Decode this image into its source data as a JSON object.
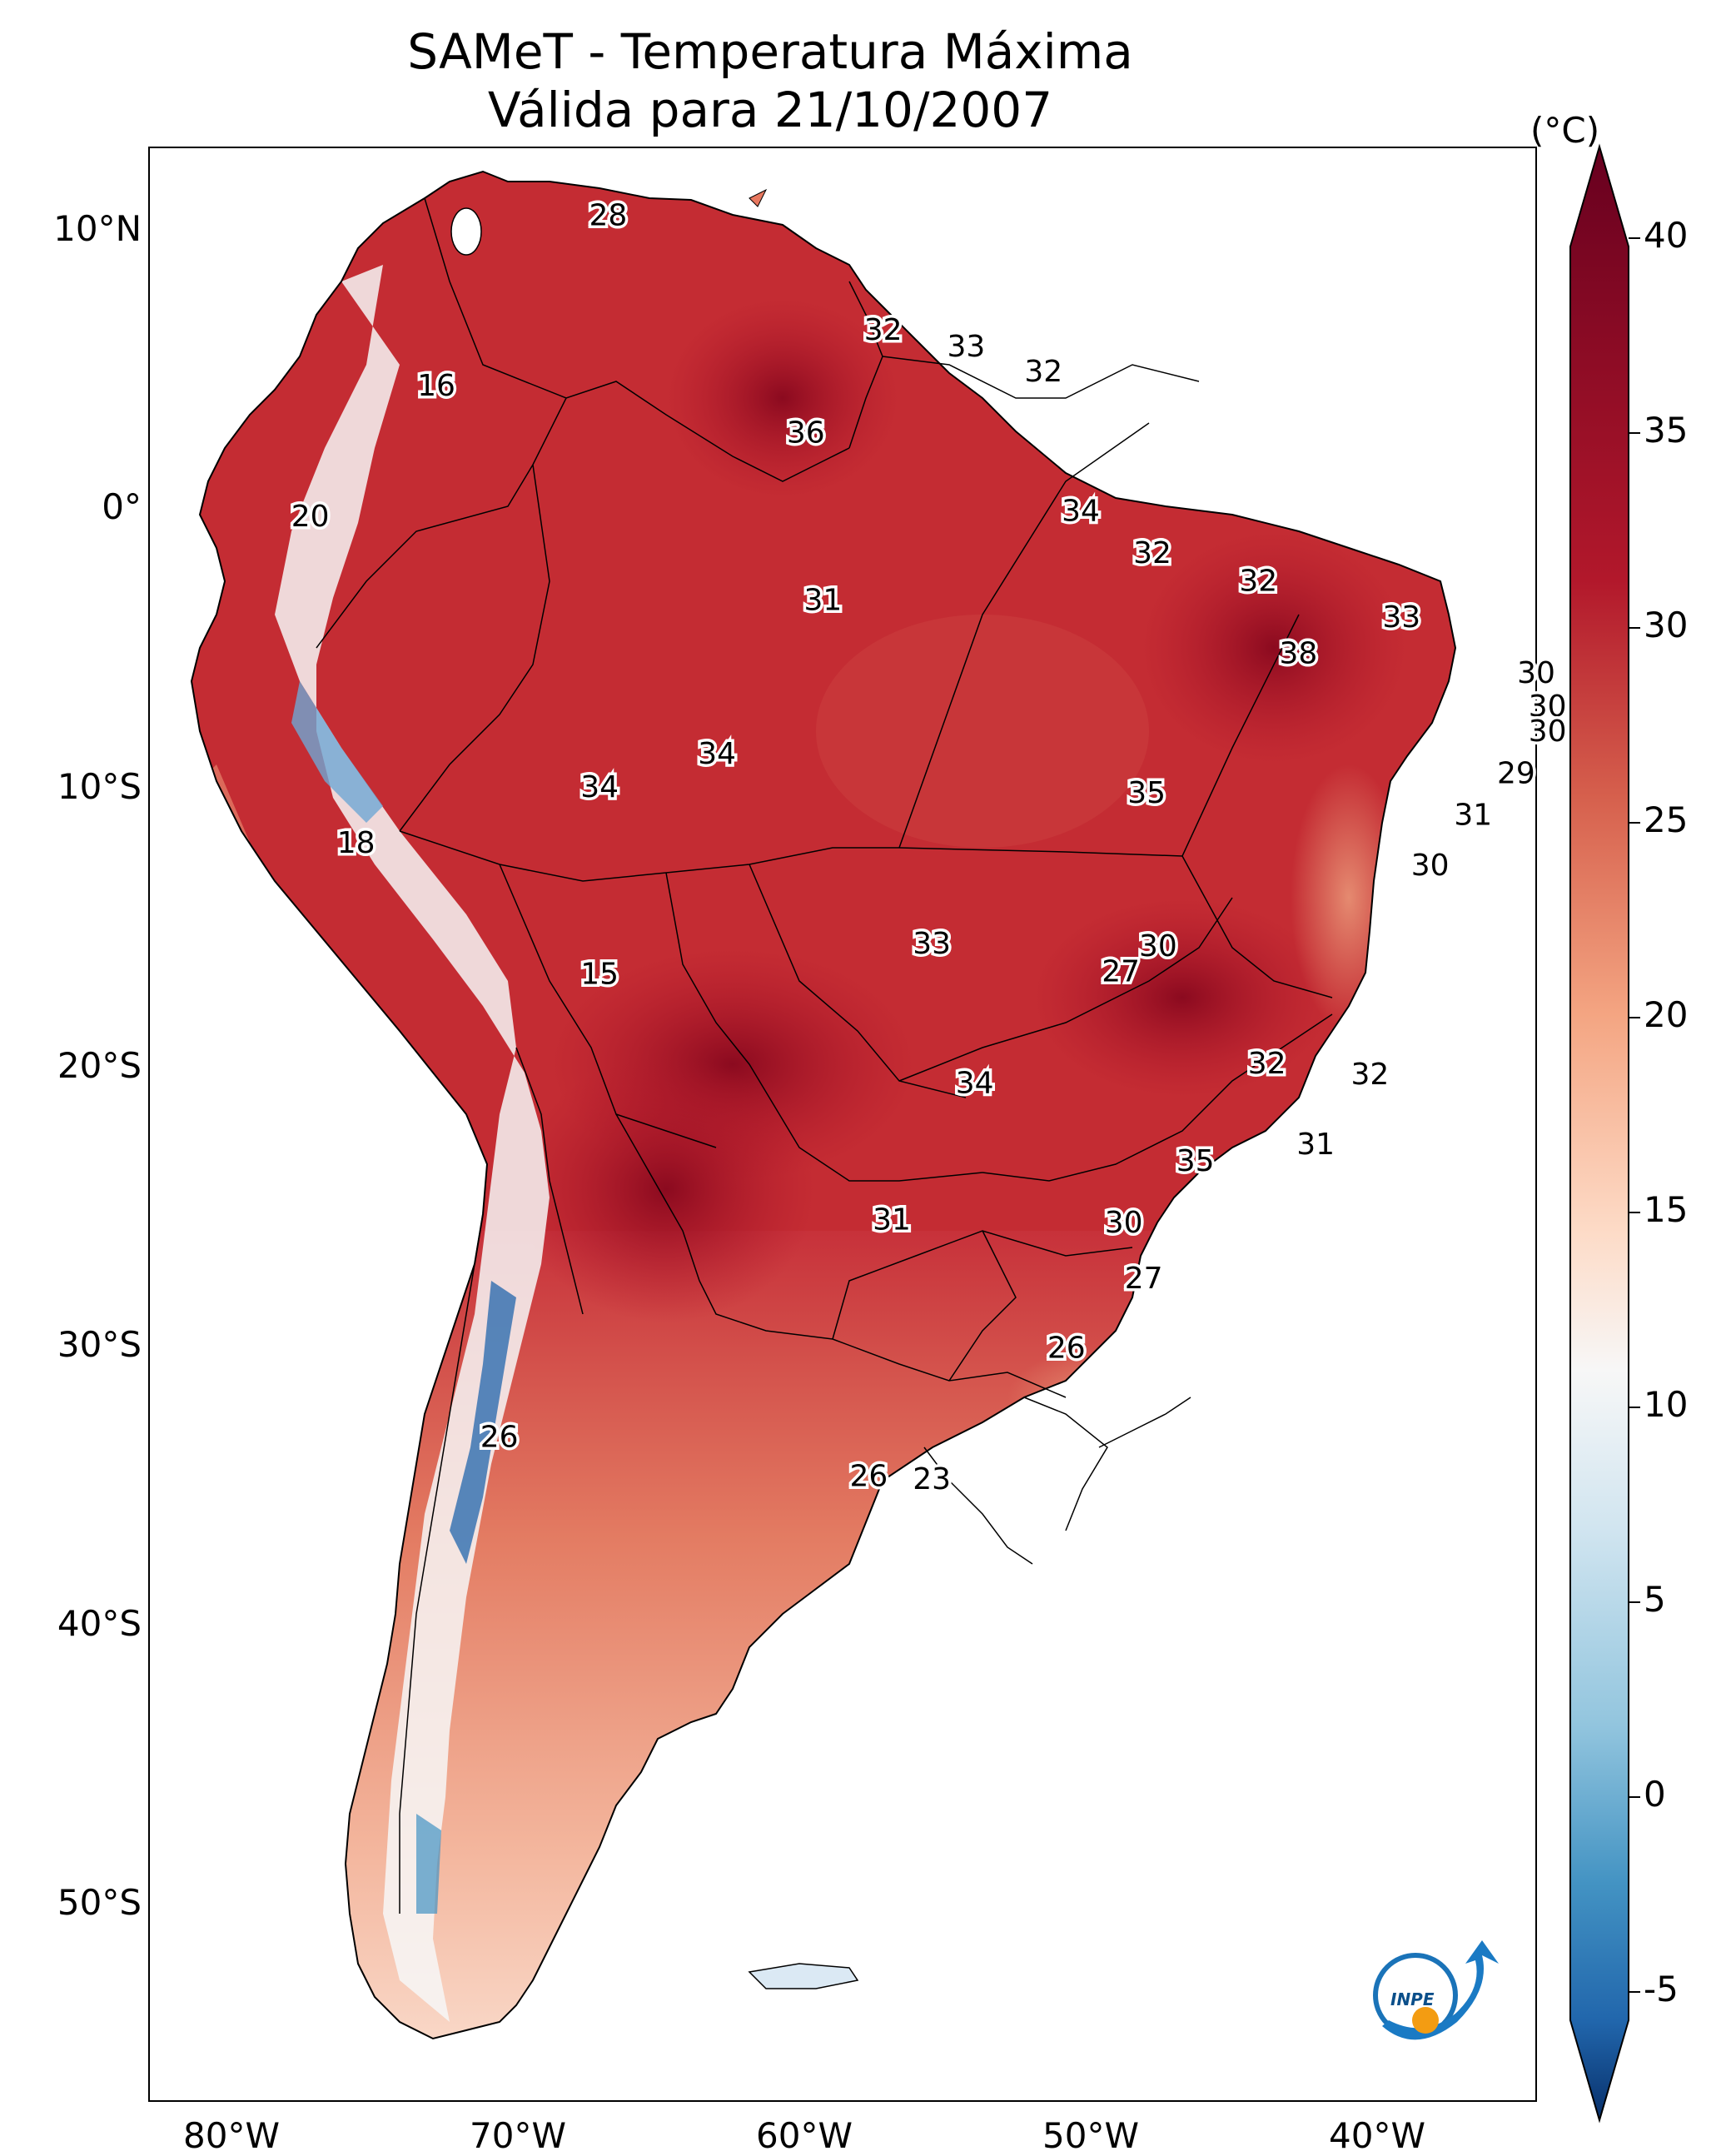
{
  "title": {
    "line1": "SAMeT - Temperatura Máxima",
    "line2": "Válida para 21/10/2007"
  },
  "axes": {
    "lat_ticks": [
      "10°N",
      "0°",
      "10°S",
      "20°S",
      "30°S",
      "40°S",
      "50°S"
    ],
    "lon_ticks": [
      "80°W",
      "70°W",
      "60°W",
      "50°W",
      "40°W"
    ]
  },
  "colorbar": {
    "unit": "(°C)",
    "ticks": [
      "40",
      "35",
      "30",
      "25",
      "20",
      "15",
      "10",
      "5",
      "0",
      "-5"
    ],
    "range": [
      -5,
      40
    ],
    "colors": [
      "#08306b",
      "#2166ac",
      "#4393c3",
      "#92c5de",
      "#d1e5f0",
      "#f7f7f7",
      "#fddbc7",
      "#f4a582",
      "#d6604d",
      "#b2182b",
      "#67001f"
    ]
  },
  "logo": {
    "text": "INPE"
  },
  "value_labels": [
    {
      "text": "28",
      "lon": -67.5,
      "lat": 10.6
    },
    {
      "text": "32",
      "lon": -57.9,
      "lat": 6.5
    },
    {
      "text": "33",
      "lon": -55.0,
      "lat": 5.9
    },
    {
      "text": "32",
      "lon": -52.3,
      "lat": 5.0
    },
    {
      "text": "16",
      "lon": -73.5,
      "lat": 4.5
    },
    {
      "text": "36",
      "lon": -60.6,
      "lat": 2.8
    },
    {
      "text": "34",
      "lon": -51.0,
      "lat": 0.0
    },
    {
      "text": "20",
      "lon": -77.9,
      "lat": -0.2
    },
    {
      "text": "32",
      "lon": -48.5,
      "lat": -1.5
    },
    {
      "text": "32",
      "lon": -44.8,
      "lat": -2.5
    },
    {
      "text": "31",
      "lon": -60.0,
      "lat": -3.2
    },
    {
      "text": "33",
      "lon": -39.8,
      "lat": -3.8
    },
    {
      "text": "38",
      "lon": -43.4,
      "lat": -5.1
    },
    {
      "text": "30",
      "lon": -35.1,
      "lat": -5.8
    },
    {
      "text": "30",
      "lon": -34.7,
      "lat": -7.0
    },
    {
      "text": "30",
      "lon": -34.7,
      "lat": -7.9
    },
    {
      "text": "34",
      "lon": -63.7,
      "lat": -8.7
    },
    {
      "text": "29",
      "lon": -35.8,
      "lat": -9.4
    },
    {
      "text": "34",
      "lon": -67.8,
      "lat": -9.9
    },
    {
      "text": "35",
      "lon": -48.7,
      "lat": -10.1
    },
    {
      "text": "31",
      "lon": -37.3,
      "lat": -10.9
    },
    {
      "text": "18",
      "lon": -76.3,
      "lat": -11.9
    },
    {
      "text": "30",
      "lon": -38.8,
      "lat": -12.7
    },
    {
      "text": "33",
      "lon": -56.2,
      "lat": -15.5
    },
    {
      "text": "30",
      "lon": -48.3,
      "lat": -15.6
    },
    {
      "text": "15",
      "lon": -67.8,
      "lat": -16.6
    },
    {
      "text": "27",
      "lon": -49.6,
      "lat": -16.5
    },
    {
      "text": "32",
      "lon": -44.5,
      "lat": -19.8
    },
    {
      "text": "32",
      "lon": -40.9,
      "lat": -20.2
    },
    {
      "text": "34",
      "lon": -54.7,
      "lat": -20.5
    },
    {
      "text": "31",
      "lon": -42.8,
      "lat": -22.7
    },
    {
      "text": "35",
      "lon": -47.0,
      "lat": -23.3
    },
    {
      "text": "31",
      "lon": -57.6,
      "lat": -25.4
    },
    {
      "text": "30",
      "lon": -49.5,
      "lat": -25.5
    },
    {
      "text": "27",
      "lon": -48.8,
      "lat": -27.5
    },
    {
      "text": "26",
      "lon": -51.5,
      "lat": -30.0
    },
    {
      "text": "26",
      "lon": -71.3,
      "lat": -33.2
    },
    {
      "text": "26",
      "lon": -58.4,
      "lat": -34.6
    },
    {
      "text": "23",
      "lon": -56.2,
      "lat": -34.7
    }
  ]
}
